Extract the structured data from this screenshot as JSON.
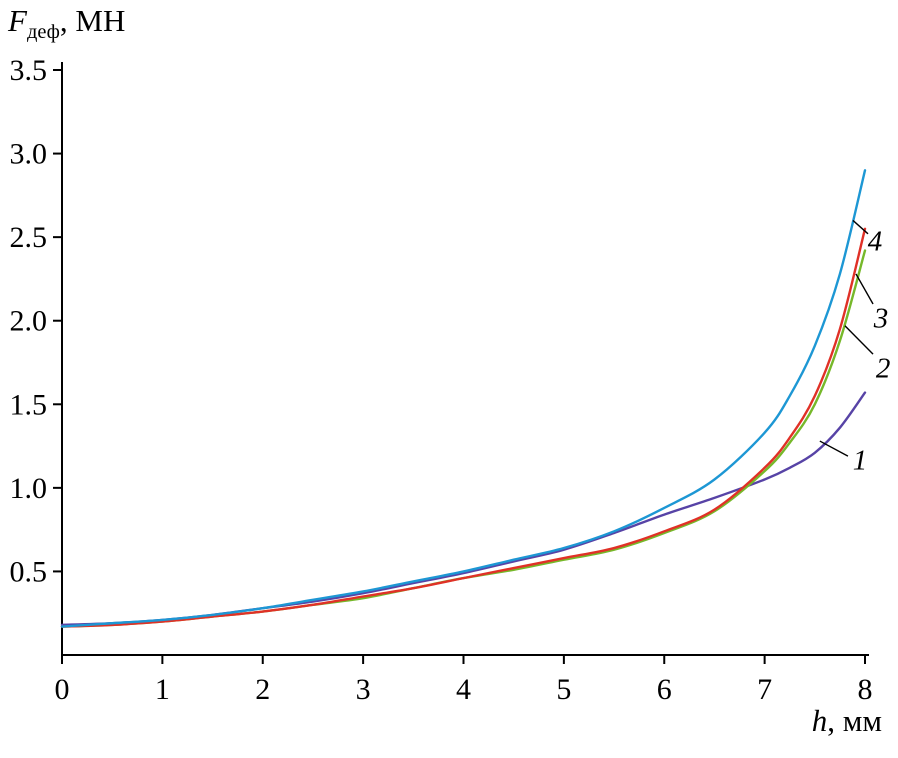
{
  "chart_data": {
    "type": "line",
    "title": "",
    "ylabel": {
      "symbol": "F",
      "subscript": "деф",
      "suffix": ", МН"
    },
    "xlabel": {
      "symbol": "h",
      "suffix": ", мм"
    },
    "xlim": [
      0,
      8
    ],
    "ylim": [
      0,
      3.5
    ],
    "grid": false,
    "legend_position": "none",
    "axis_color": "#000000",
    "xticks": [
      {
        "v": 0,
        "label": "0"
      },
      {
        "v": 1,
        "label": "1"
      },
      {
        "v": 2,
        "label": "2"
      },
      {
        "v": 3,
        "label": "3"
      },
      {
        "v": 4,
        "label": "4"
      },
      {
        "v": 5,
        "label": "5"
      },
      {
        "v": 6,
        "label": "6"
      },
      {
        "v": 7,
        "label": "7"
      },
      {
        "v": 8,
        "label": "8"
      }
    ],
    "yticks": [
      {
        "v": 0.5,
        "label": "0.5"
      },
      {
        "v": 1.0,
        "label": "1.0"
      },
      {
        "v": 1.5,
        "label": "1.5"
      },
      {
        "v": 2.0,
        "label": "2.0"
      },
      {
        "v": 2.5,
        "label": "2.5"
      },
      {
        "v": 3.0,
        "label": "3.0"
      },
      {
        "v": 3.5,
        "label": "3.5"
      }
    ],
    "x": [
      0,
      0.5,
      1,
      1.5,
      2,
      2.5,
      3,
      3.5,
      4,
      4.5,
      5,
      5.5,
      6,
      6.5,
      7,
      7.25,
      7.5,
      7.75,
      8
    ],
    "series": [
      {
        "name": "1",
        "color": "#5743a6",
        "y": [
          0.18,
          0.19,
          0.21,
          0.24,
          0.28,
          0.32,
          0.37,
          0.43,
          0.49,
          0.56,
          0.63,
          0.73,
          0.84,
          0.94,
          1.05,
          1.12,
          1.21,
          1.36,
          1.57
        ]
      },
      {
        "name": "2",
        "color": "#76b82a",
        "y": [
          0.17,
          0.18,
          0.2,
          0.23,
          0.26,
          0.3,
          0.34,
          0.4,
          0.46,
          0.51,
          0.57,
          0.63,
          0.73,
          0.86,
          1.1,
          1.27,
          1.5,
          1.88,
          2.42
        ]
      },
      {
        "name": "3",
        "color": "#e03127",
        "y": [
          0.17,
          0.18,
          0.2,
          0.23,
          0.26,
          0.3,
          0.35,
          0.4,
          0.46,
          0.52,
          0.58,
          0.64,
          0.74,
          0.87,
          1.12,
          1.3,
          1.55,
          1.95,
          2.55
        ]
      },
      {
        "name": "4",
        "color": "#1d97d4",
        "y": [
          0.17,
          0.19,
          0.21,
          0.24,
          0.28,
          0.33,
          0.38,
          0.44,
          0.5,
          0.57,
          0.64,
          0.74,
          0.88,
          1.05,
          1.33,
          1.55,
          1.85,
          2.28,
          2.9
        ]
      }
    ],
    "annotations": [
      {
        "label": "4",
        "x": 8.1,
        "y": 2.48,
        "line": [
          7.88,
          2.6,
          8.03,
          2.52
        ]
      },
      {
        "label": "3",
        "x": 8.16,
        "y": 2.02,
        "line": [
          7.91,
          2.28,
          8.08,
          2.1
        ]
      },
      {
        "label": "2",
        "x": 8.18,
        "y": 1.72,
        "line": [
          7.8,
          1.97,
          8.08,
          1.8
        ]
      },
      {
        "label": "1",
        "x": 7.95,
        "y": 1.17,
        "line": [
          7.55,
          1.28,
          7.83,
          1.19
        ]
      }
    ]
  }
}
